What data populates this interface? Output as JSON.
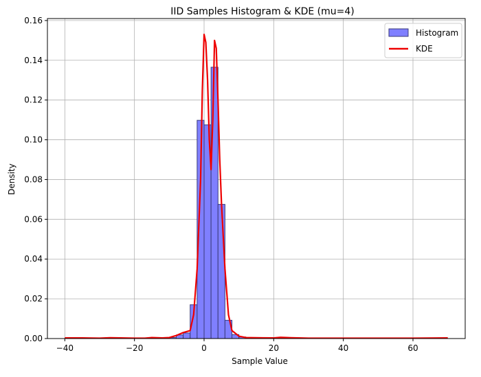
{
  "chart_data": {
    "type": "bar",
    "title": "IID Samples Histogram & KDE (mu=4)",
    "xlabel": "Sample Value",
    "ylabel": "Density",
    "xlim": [
      -45,
      75
    ],
    "ylim": [
      0.0,
      0.161
    ],
    "x_ticks": [
      -40,
      -20,
      0,
      20,
      40,
      60
    ],
    "y_ticks": [
      0.0,
      0.02,
      0.04,
      0.06,
      0.08,
      0.1,
      0.12,
      0.14,
      0.16
    ],
    "x_tick_labels": [
      "−40",
      "−20",
      "0",
      "20",
      "40",
      "60"
    ],
    "y_tick_labels": [
      "0.00",
      "0.02",
      "0.04",
      "0.06",
      "0.08",
      "0.10",
      "0.12",
      "0.14",
      "0.16"
    ],
    "grid": true,
    "legend_position": "top-right",
    "series": [
      {
        "name": "Histogram",
        "type": "histogram",
        "color": "#7f7fff",
        "edge_color": "#3a3a7a",
        "bins": [
          {
            "x0": -10.0,
            "x1": -8.0,
            "value": 0.0005
          },
          {
            "x0": -8.0,
            "x1": -6.0,
            "value": 0.0018
          },
          {
            "x0": -6.0,
            "x1": -4.0,
            "value": 0.0028
          },
          {
            "x0": -4.0,
            "x1": -2.0,
            "value": 0.017
          },
          {
            "x0": -2.0,
            "x1": 0.0,
            "value": 0.1098
          },
          {
            "x0": 0.0,
            "x1": 2.0,
            "value": 0.1075
          },
          {
            "x0": 2.0,
            "x1": 4.0,
            "value": 0.1365
          },
          {
            "x0": 4.0,
            "x1": 6.0,
            "value": 0.0675
          },
          {
            "x0": 6.0,
            "x1": 8.0,
            "value": 0.0092
          },
          {
            "x0": 8.0,
            "x1": 10.0,
            "value": 0.002
          },
          {
            "x0": 10.0,
            "x1": 12.0,
            "value": 0.0008
          },
          {
            "x0": 12.0,
            "x1": 14.0,
            "value": 0.0004
          }
        ]
      },
      {
        "name": "KDE",
        "type": "line",
        "color": "#ee0000",
        "x": [
          -40,
          -35,
          -30,
          -27,
          -24,
          -20,
          -17,
          -15,
          -12,
          -10,
          -8,
          -6,
          -4,
          -3,
          -2,
          -1,
          -0.5,
          0,
          0.5,
          1,
          1.5,
          2,
          2.5,
          3,
          3.5,
          4,
          4.5,
          5,
          6,
          7,
          8,
          10,
          12,
          15,
          20,
          22,
          25,
          30,
          40,
          50,
          60,
          70
        ],
        "y": [
          0.0003,
          0.0003,
          0.0002,
          0.0004,
          0.0003,
          0.0002,
          0.0002,
          0.0005,
          0.0003,
          0.0005,
          0.0015,
          0.003,
          0.004,
          0.012,
          0.035,
          0.08,
          0.125,
          0.153,
          0.149,
          0.13,
          0.1,
          0.085,
          0.11,
          0.15,
          0.146,
          0.12,
          0.09,
          0.068,
          0.035,
          0.012,
          0.004,
          0.0012,
          0.0005,
          0.0004,
          0.0003,
          0.0006,
          0.0004,
          0.0002,
          0.0002,
          0.0002,
          0.0002,
          0.0003
        ]
      }
    ]
  }
}
